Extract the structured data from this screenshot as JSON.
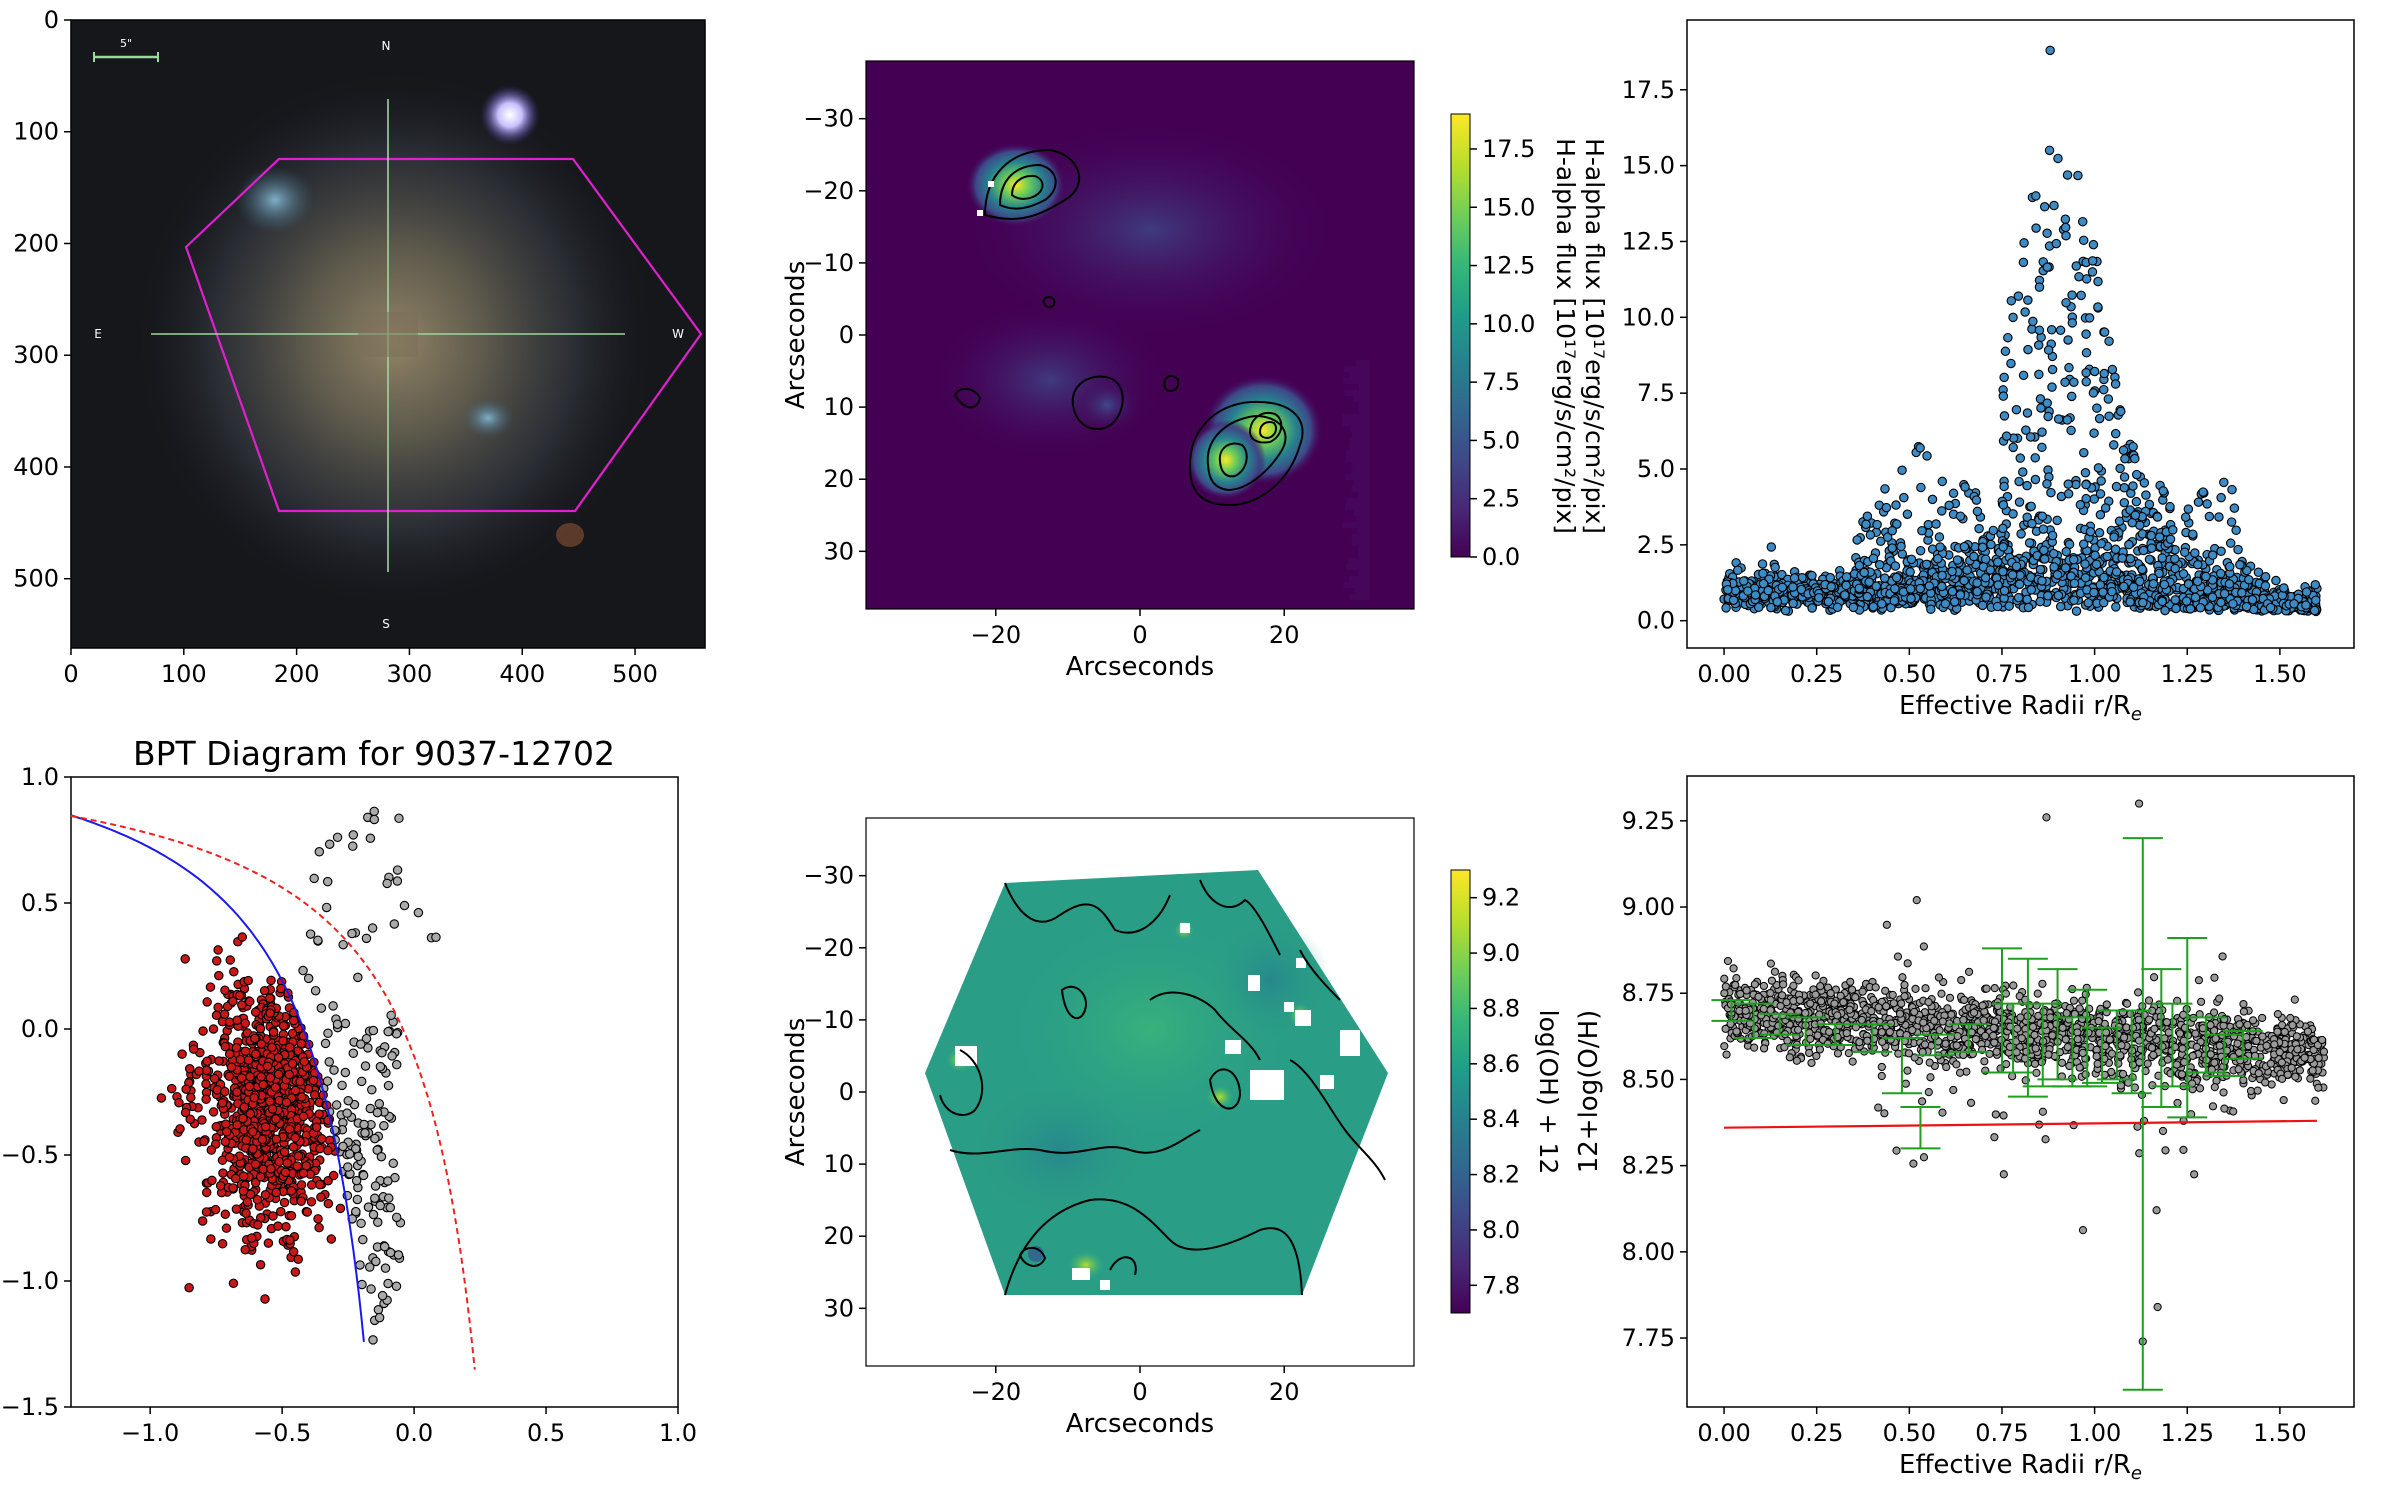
{
  "figure": {
    "panels": [
      {
        "id": "galaxy-image",
        "type": "image",
        "title": "",
        "xticks": [
          "0",
          "100",
          "200",
          "300",
          "400",
          "500"
        ],
        "yticks": [
          "0",
          "100",
          "200",
          "300",
          "400",
          "500"
        ],
        "xlim": [
          0,
          562
        ],
        "ylim": [
          562,
          0
        ],
        "compass": {
          "n": "N",
          "s": "S",
          "e": "E",
          "w": "W"
        },
        "scalebar_label": "5\"",
        "hexagon_color": "#e020d0",
        "crosshair_color": "#9fd59f"
      }
    ]
  },
  "chart_data": [
    {
      "id": "halpha-map",
      "type": "heatmap",
      "title": "",
      "xlabel": "Arcseconds",
      "ylabel": "Arcseconds",
      "xticks": [
        "−20",
        "0",
        "20"
      ],
      "yticks": [
        "−30",
        "−20",
        "−10",
        "0",
        "10",
        "20",
        "30"
      ],
      "xlim": [
        -38,
        38
      ],
      "ylim": [
        -38,
        38
      ],
      "colorbar": {
        "label": "H-alpha flux [10¹⁷erg/s/cm²/pix]",
        "ticks": [
          "0.0",
          "2.5",
          "5.0",
          "7.5",
          "10.0",
          "12.5",
          "15.0",
          "17.5"
        ],
        "range": [
          0,
          19
        ]
      },
      "colormap": [
        "#440154",
        "#482878",
        "#3e4989",
        "#31688e",
        "#26828e",
        "#1f9e89",
        "#35b779",
        "#6ece58",
        "#b5de2b",
        "#fde725"
      ]
    },
    {
      "id": "halpha-profile",
      "type": "scatter",
      "title": "",
      "xlabel": "Effective Radii r/R",
      "xlabel_sub": "e",
      "ylabel": "",
      "xticks": [
        "0.00",
        "0.25",
        "0.50",
        "0.75",
        "1.00",
        "1.25",
        "1.50"
      ],
      "yticks": [
        "0.0",
        "2.5",
        "5.0",
        "7.5",
        "10.0",
        "12.5",
        "15.0",
        "17.5"
      ],
      "xlim": [
        -0.1,
        1.7
      ],
      "ylim": [
        -0.9,
        19.8
      ],
      "point_color": "#3c8bc4",
      "series": [
        {
          "peak_x": 0.88,
          "peak_y": 18.8
        }
      ]
    },
    {
      "id": "bpt-diagram",
      "type": "scatter",
      "title": "BPT Diagram for 9037-12702",
      "xlabel": "",
      "ylabel": "",
      "xticks": [
        "−1.0",
        "−0.5",
        "0.0",
        "0.5",
        "1.0"
      ],
      "yticks": [
        "−1.5",
        "−1.0",
        "−0.5",
        "0.0",
        "0.5",
        "1.0"
      ],
      "xlim": [
        -1.3,
        1.0
      ],
      "ylim": [
        -1.5,
        1.0
      ],
      "series": [
        {
          "color": "#c81818",
          "center": [
            -0.55,
            -0.3
          ]
        },
        {
          "color": "#aaaaaa",
          "center": [
            -0.35,
            -0.15
          ]
        }
      ],
      "curves": [
        {
          "color": "#1a1aee",
          "style": "solid"
        },
        {
          "color": "#ee2222",
          "style": "dashed"
        }
      ]
    },
    {
      "id": "metallicity-map",
      "type": "heatmap",
      "title": "",
      "xlabel": "Arcseconds",
      "ylabel": "Arcseconds",
      "xticks": [
        "−20",
        "0",
        "20"
      ],
      "yticks": [
        "−30",
        "−20",
        "−10",
        "0",
        "10",
        "20",
        "30"
      ],
      "xlim": [
        -38,
        38
      ],
      "ylim": [
        -38,
        38
      ],
      "colorbar": {
        "label": "log(OH) + 12",
        "ticks": [
          "7.8",
          "8.0",
          "8.2",
          "8.4",
          "8.6",
          "8.8",
          "9.0",
          "9.2"
        ],
        "range": [
          7.7,
          9.3
        ]
      },
      "colormap": [
        "#440154",
        "#482878",
        "#3e4989",
        "#31688e",
        "#26828e",
        "#1f9e89",
        "#35b779",
        "#6ece58",
        "#b5de2b",
        "#fde725"
      ]
    },
    {
      "id": "metallicity-profile",
      "type": "scatter",
      "title": "",
      "xlabel": "Effective Radii r/R",
      "xlabel_sub": "e",
      "ylabel": "12+log(O/H)",
      "xticks": [
        "0.00",
        "0.25",
        "0.50",
        "0.75",
        "1.00",
        "1.25",
        "1.50"
      ],
      "yticks": [
        "7.75",
        "8.00",
        "8.25",
        "8.50",
        "8.75",
        "9.00",
        "9.25"
      ],
      "xlim": [
        -0.1,
        1.7
      ],
      "ylim": [
        7.55,
        9.38
      ],
      "point_color": "#9a9a9a",
      "fit_line": {
        "color": "#ee1111",
        "x": [
          0.0,
          1.6
        ],
        "y": [
          8.36,
          8.38
        ]
      },
      "errorbar_color": "#1f9e1f",
      "errorbars": [
        {
          "x": 0.02,
          "y": 8.7,
          "err": 0.03
        },
        {
          "x": 0.08,
          "y": 8.67,
          "err": 0.05
        },
        {
          "x": 0.15,
          "y": 8.66,
          "err": 0.03
        },
        {
          "x": 0.22,
          "y": 8.64,
          "err": 0.04
        },
        {
          "x": 0.3,
          "y": 8.63,
          "err": 0.03
        },
        {
          "x": 0.4,
          "y": 8.62,
          "err": 0.04
        },
        {
          "x": 0.48,
          "y": 8.54,
          "err": 0.08
        },
        {
          "x": 0.53,
          "y": 8.36,
          "err": 0.06
        },
        {
          "x": 0.57,
          "y": 8.6,
          "err": 0.03
        },
        {
          "x": 0.66,
          "y": 8.62,
          "err": 0.04
        },
        {
          "x": 0.75,
          "y": 8.7,
          "err": 0.18
        },
        {
          "x": 0.78,
          "y": 8.62,
          "err": 0.1
        },
        {
          "x": 0.82,
          "y": 8.65,
          "err": 0.2
        },
        {
          "x": 0.86,
          "y": 8.6,
          "err": 0.12
        },
        {
          "x": 0.9,
          "y": 8.66,
          "err": 0.16
        },
        {
          "x": 0.94,
          "y": 8.58,
          "err": 0.1
        },
        {
          "x": 0.98,
          "y": 8.62,
          "err": 0.14
        },
        {
          "x": 1.02,
          "y": 8.57,
          "err": 0.08
        },
        {
          "x": 1.06,
          "y": 8.6,
          "err": 0.1
        },
        {
          "x": 1.1,
          "y": 8.58,
          "err": 0.12
        },
        {
          "x": 1.13,
          "y": 8.4,
          "err": 0.8
        },
        {
          "x": 1.18,
          "y": 8.62,
          "err": 0.2
        },
        {
          "x": 1.21,
          "y": 8.6,
          "err": 0.12
        },
        {
          "x": 1.25,
          "y": 8.65,
          "err": 0.26
        },
        {
          "x": 1.3,
          "y": 8.6,
          "err": 0.08
        },
        {
          "x": 1.35,
          "y": 8.57,
          "err": 0.06
        },
        {
          "x": 1.4,
          "y": 8.6,
          "err": 0.04
        }
      ]
    }
  ]
}
